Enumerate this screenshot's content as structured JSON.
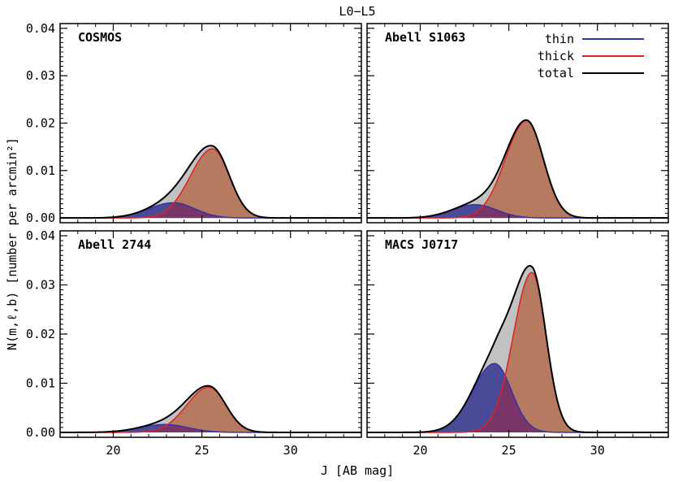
{
  "chart_data": {
    "type": "area",
    "title": "L0−L5",
    "xlabel": "J [AB mag]",
    "ylabel": "N(m,ℓ,b) [number per arcmin²]",
    "xlim": [
      17,
      34
    ],
    "ylim": [
      -0.001,
      0.041
    ],
    "x_ticks": [
      20,
      25,
      30
    ],
    "x_tick_labels": [
      "20",
      "25",
      "30"
    ],
    "y_ticks": [
      0.0,
      0.01,
      0.02,
      0.03,
      0.04
    ],
    "y_tick_labels": [
      "0.00",
      "0.01",
      "0.02",
      "0.03",
      "0.04"
    ],
    "legend": {
      "placement": "top-right",
      "entries": [
        "thin",
        "thick",
        "total"
      ]
    },
    "colors": {
      "thin": "#3333aa",
      "thick": "#dd2222",
      "total": "#000000",
      "thin_fill": "#4a4a99",
      "thick_fill": "#b57a60",
      "total_fill": "#c2c2c2",
      "overlap_fill": "#7a3568"
    },
    "series_names": [
      "thin",
      "thick",
      "total"
    ],
    "panels": [
      {
        "label": "COSMOS",
        "thin": {
          "peak": 0.0032,
          "center": 23.4,
          "sigma_left": 1.4,
          "sigma_right": 1.2
        },
        "thick": {
          "peak": 0.0146,
          "center": 25.6,
          "sigma_left": 1.25,
          "sigma_right": 0.95
        }
      },
      {
        "label": "Abell S1063",
        "thin": {
          "peak": 0.0028,
          "center": 23.1,
          "sigma_left": 1.3,
          "sigma_right": 1.2
        },
        "thick": {
          "peak": 0.0205,
          "center": 26.0,
          "sigma_left": 1.2,
          "sigma_right": 0.95
        }
      },
      {
        "label": "Abell 2744",
        "thin": {
          "peak": 0.0016,
          "center": 22.9,
          "sigma_left": 1.4,
          "sigma_right": 1.3
        },
        "thick": {
          "peak": 0.0092,
          "center": 25.4,
          "sigma_left": 1.25,
          "sigma_right": 0.95
        }
      },
      {
        "label": "MACS J0717",
        "thin": {
          "peak": 0.014,
          "center": 24.2,
          "sigma_left": 1.25,
          "sigma_right": 0.95
        },
        "thick": {
          "peak": 0.0325,
          "center": 26.3,
          "sigma_left": 1.05,
          "sigma_right": 0.8
        }
      }
    ]
  }
}
